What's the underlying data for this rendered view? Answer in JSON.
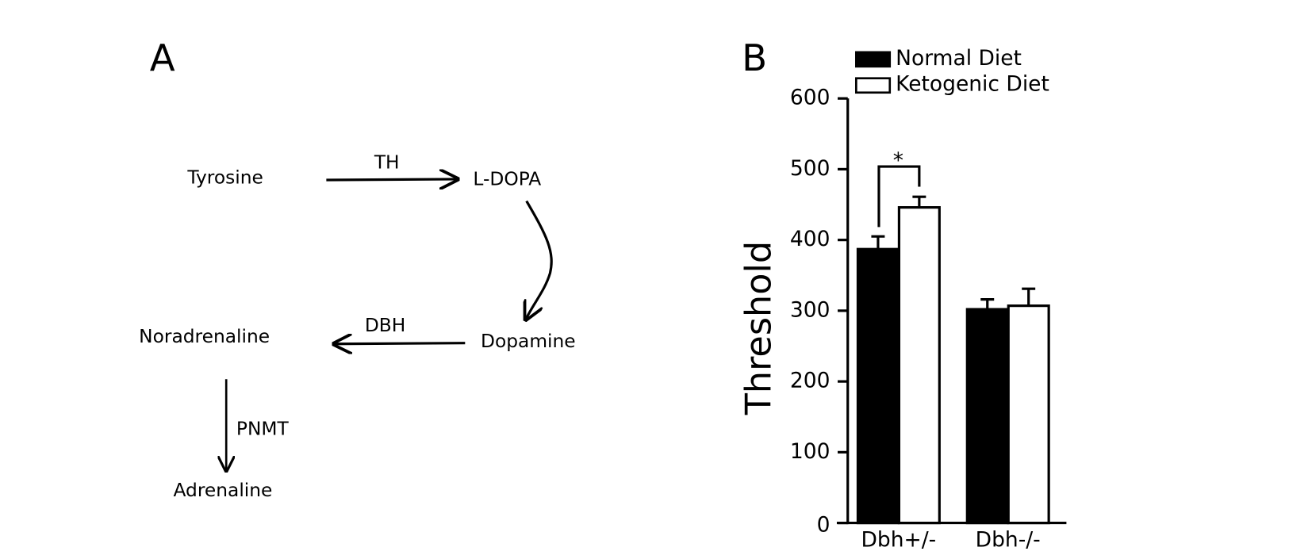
{
  "panel_a": {
    "label": "A",
    "nodes": [
      "Tyrosine",
      "L-DOPA",
      "Dopamine",
      "Noradrenaline",
      "Adrenaline"
    ],
    "enzymes": [
      "TH",
      "DBH",
      "PNMT"
    ]
  },
  "chart_data": {
    "type": "bar",
    "panel_label": "B",
    "y_label": "Threshold",
    "categories": [
      "Dbh+/-",
      "Dbh-/-"
    ],
    "series": [
      {
        "name": "Normal Diet",
        "color": "#000000",
        "values": [
          387,
          302
        ],
        "errors": [
          18,
          14
        ]
      },
      {
        "name": "Ketogenic Diet",
        "color": "#ffffff",
        "values": [
          446,
          307
        ],
        "errors": [
          15,
          24
        ]
      }
    ],
    "ylim": [
      0,
      600
    ],
    "yticks": [
      0,
      100,
      200,
      300,
      400,
      500,
      600
    ],
    "annotation": "*"
  }
}
